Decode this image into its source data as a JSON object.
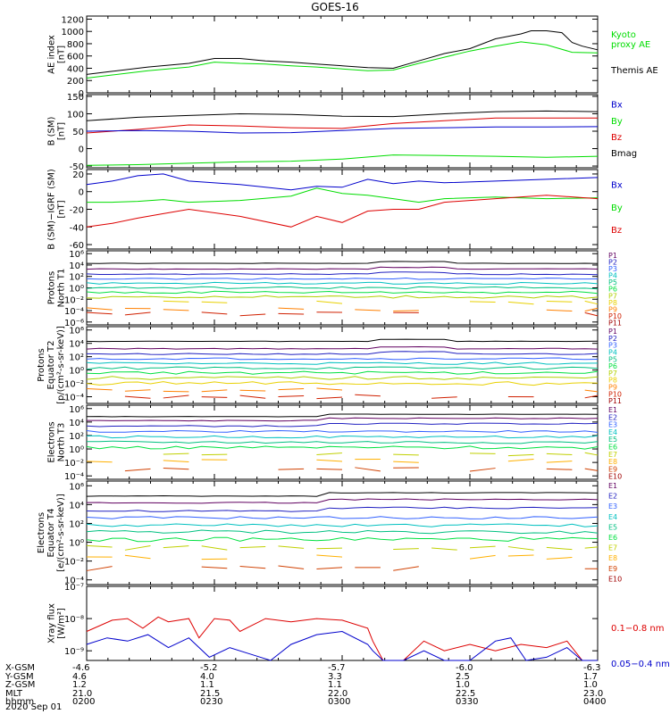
{
  "title": "GOES-16",
  "colors": {
    "black": "#000000",
    "blue": "#0000cc",
    "green": "#00dd00",
    "red": "#dd0000",
    "P": [
      "#000000",
      "#600060",
      "#2020c0",
      "#3060ff",
      "#00c0c0",
      "#00c080",
      "#00e040",
      "#b0d000",
      "#e8d000",
      "#ff8000",
      "#d02000",
      "#a00000"
    ],
    "E": [
      "#000000",
      "#600060",
      "#2020c0",
      "#3060ff",
      "#00c0c0",
      "#00c080",
      "#00e040",
      "#c0d000",
      "#ffb000",
      "#d04000",
      "#a00000"
    ]
  },
  "chart_data": [
    {
      "type": "line",
      "name": "ae",
      "ylabel_lines": [
        "AE index",
        "[nT]"
      ],
      "ytick_labels": [
        "1200",
        "1000",
        "800",
        "600",
        "400",
        "200",
        "0"
      ],
      "ytick_values": [
        1200,
        1000,
        800,
        600,
        400,
        200,
        0
      ],
      "ylim": [
        0,
        1250
      ],
      "legend": [
        {
          "text": "Kyoto",
          "color": "green"
        },
        {
          "text": "proxy AE",
          "color": "green"
        },
        {
          "text": "Themis AE",
          "color": "black"
        }
      ],
      "series": [
        {
          "label": "Themis AE",
          "color": "black",
          "x": [
            0,
            0.05,
            0.12,
            0.2,
            0.25,
            0.3,
            0.35,
            0.4,
            0.45,
            0.5,
            0.55,
            0.6,
            0.65,
            0.7,
            0.75,
            0.8,
            0.85,
            0.87,
            0.9,
            0.93,
            0.95,
            0.97,
            1
          ],
          "y": [
            300,
            350,
            420,
            480,
            560,
            560,
            520,
            500,
            470,
            440,
            410,
            400,
            520,
            640,
            720,
            880,
            960,
            1010,
            1010,
            980,
            820,
            760,
            700
          ]
        },
        {
          "label": "Kyoto proxy AE",
          "color": "green",
          "x": [
            0,
            0.05,
            0.12,
            0.2,
            0.25,
            0.3,
            0.35,
            0.4,
            0.45,
            0.5,
            0.55,
            0.6,
            0.65,
            0.7,
            0.75,
            0.8,
            0.85,
            0.9,
            0.95,
            1
          ],
          "y": [
            240,
            290,
            360,
            420,
            500,
            480,
            470,
            440,
            420,
            390,
            360,
            370,
            480,
            580,
            680,
            760,
            830,
            780,
            660,
            650
          ]
        }
      ]
    },
    {
      "type": "line",
      "name": "b-sm",
      "ylabel_lines": [
        "B (SM)",
        "[nT]"
      ],
      "ytick_labels": [
        "150",
        "100",
        "50",
        "0",
        "-50"
      ],
      "ytick_values": [
        150,
        100,
        50,
        0,
        -50
      ],
      "ylim": [
        -55,
        155
      ],
      "legend": [
        {
          "text": "Bx",
          "color": "blue"
        },
        {
          "text": "By",
          "color": "green"
        },
        {
          "text": "Bz",
          "color": "red"
        },
        {
          "text": "Bmag",
          "color": "black"
        }
      ],
      "series": [
        {
          "label": "Bmag",
          "color": "black",
          "x": [
            0,
            0.1,
            0.2,
            0.3,
            0.4,
            0.5,
            0.6,
            0.7,
            0.8,
            0.9,
            1
          ],
          "y": [
            80,
            90,
            95,
            100,
            98,
            93,
            92,
            100,
            106,
            108,
            106
          ]
        },
        {
          "label": "Bz",
          "color": "red",
          "x": [
            0,
            0.1,
            0.2,
            0.3,
            0.4,
            0.5,
            0.6,
            0.7,
            0.8,
            0.9,
            1
          ],
          "y": [
            45,
            55,
            68,
            65,
            60,
            58,
            72,
            80,
            88,
            88,
            88
          ]
        },
        {
          "label": "Bx",
          "color": "blue",
          "x": [
            0,
            0.1,
            0.2,
            0.3,
            0.4,
            0.5,
            0.6,
            0.7,
            0.8,
            0.9,
            1
          ],
          "y": [
            50,
            52,
            50,
            45,
            46,
            52,
            58,
            60,
            62,
            62,
            63
          ]
        },
        {
          "label": "By",
          "color": "green",
          "x": [
            0,
            0.1,
            0.2,
            0.3,
            0.4,
            0.5,
            0.6,
            0.7,
            0.8,
            0.9,
            1
          ],
          "y": [
            -48,
            -46,
            -42,
            -38,
            -36,
            -30,
            -18,
            -20,
            -22,
            -25,
            -22
          ]
        }
      ]
    },
    {
      "type": "line",
      "name": "b-minus-igrf",
      "ylabel_lines": [
        "B (SM)−IGRF (SM)",
        "[nT]"
      ],
      "ytick_labels": [
        "20",
        "0",
        "-20",
        "-40",
        "-60"
      ],
      "ytick_values": [
        20,
        0,
        -20,
        -40,
        -60
      ],
      "ylim": [
        -65,
        25
      ],
      "legend": [
        {
          "text": "Bx",
          "color": "blue"
        },
        {
          "text": "By",
          "color": "green"
        },
        {
          "text": "Bz",
          "color": "red"
        }
      ],
      "series": [
        {
          "label": "Bx",
          "color": "blue",
          "x": [
            0,
            0.05,
            0.1,
            0.15,
            0.2,
            0.3,
            0.4,
            0.45,
            0.5,
            0.55,
            0.6,
            0.65,
            0.7,
            0.8,
            0.9,
            1
          ],
          "y": [
            8,
            12,
            18,
            20,
            12,
            8,
            2,
            6,
            5,
            14,
            9,
            12,
            10,
            12,
            14,
            16
          ]
        },
        {
          "label": "By",
          "color": "green",
          "x": [
            0,
            0.05,
            0.1,
            0.15,
            0.2,
            0.3,
            0.4,
            0.45,
            0.5,
            0.55,
            0.6,
            0.65,
            0.7,
            0.8,
            0.9,
            1
          ],
          "y": [
            -12,
            -12,
            -11,
            -9,
            -12,
            -10,
            -5,
            4,
            -2,
            -4,
            -8,
            -12,
            -8,
            -6,
            -8,
            -7
          ]
        },
        {
          "label": "Bz",
          "color": "red",
          "x": [
            0,
            0.05,
            0.1,
            0.15,
            0.2,
            0.3,
            0.4,
            0.45,
            0.5,
            0.55,
            0.6,
            0.65,
            0.7,
            0.8,
            0.9,
            1
          ],
          "y": [
            -40,
            -36,
            -30,
            -25,
            -20,
            -28,
            -40,
            -28,
            -35,
            -22,
            -20,
            -20,
            -12,
            -8,
            -4,
            -8
          ]
        }
      ]
    },
    {
      "type": "line",
      "name": "protons-north",
      "scale": "log",
      "ylabel_lines": [
        "Protons",
        "North T1"
      ],
      "ytick_labels": [
        "10⁶",
        "10⁴",
        "10²",
        "10⁰",
        "10⁻²",
        "10⁻⁴",
        "10⁻⁶"
      ],
      "ytick_values": [
        6,
        4,
        2,
        0,
        -2,
        -4,
        -6
      ],
      "ylim": [
        -6.5,
        6.5
      ],
      "legend": [
        "P1",
        "P2",
        "P3",
        "P4",
        "P5",
        "P6",
        "P7",
        "P8",
        "P9",
        "P10",
        "P11"
      ],
      "series_levels": [
        4.3,
        3.3,
        2.4,
        1.6,
        0.8,
        0.0,
        -0.8,
        -1.6,
        -2.6,
        -3.8,
        -4.6
      ],
      "dashed_from": 8
    },
    {
      "type": "line",
      "name": "protons-equator",
      "scale": "log",
      "ylabel_lines": [
        "Protons",
        "Equator T2",
        "[p/(cm²-s-sr-keV)]"
      ],
      "ytick_labels": [
        "10⁶",
        "10⁴",
        "10²",
        "10⁰",
        "10⁻²",
        "10⁻⁴"
      ],
      "ytick_values": [
        6,
        4,
        2,
        0,
        -2,
        -4
      ],
      "ylim": [
        -5,
        6.5
      ],
      "legend": [
        "P1",
        "P2",
        "P3",
        "P4",
        "P5",
        "P6",
        "P7",
        "P8",
        "P9",
        "P10",
        "P11"
      ],
      "series_levels": [
        4.3,
        3.2,
        2.4,
        1.7,
        1.0,
        0.3,
        -0.4,
        -1.2,
        -2.0,
        -3.0,
        -4.0
      ],
      "dashed_from": 9
    },
    {
      "type": "line",
      "name": "electrons-north",
      "scale": "log",
      "ylabel_lines": [
        "Electrons",
        "North T3"
      ],
      "ytick_labels": [
        "10⁶",
        "10⁴",
        "10²",
        "10⁰",
        "10⁻²",
        "10⁻⁴"
      ],
      "ytick_values": [
        6,
        4,
        2,
        0,
        -2,
        -4
      ],
      "ylim": [
        -4.5,
        6.5
      ],
      "legend": [
        "E1",
        "E2",
        "E3",
        "E4",
        "E5",
        "E6",
        "E7",
        "E8",
        "E9",
        "E10"
      ],
      "series_levels": [
        4.8,
        4.2,
        3.4,
        2.6,
        1.8,
        1.0,
        0.2,
        -0.8,
        -1.8,
        -3.0
      ],
      "dashed_from": 7
    },
    {
      "type": "line",
      "name": "electrons-equator",
      "scale": "log",
      "ylabel_lines": [
        "Electrons",
        "Equator T4",
        "[e/(cm²-s-sr-keV)]"
      ],
      "ytick_labels": [
        "10⁶",
        "10⁴",
        "10²",
        "10⁰",
        "10⁻²",
        "10⁻⁴"
      ],
      "ytick_values": [
        6,
        4,
        2,
        0,
        -2,
        -4
      ],
      "ylim": [
        -4.5,
        6.5
      ],
      "legend": [
        "E1",
        "E2",
        "E3",
        "E4",
        "E5",
        "E6",
        "E7",
        "E8",
        "E9",
        "E10"
      ],
      "series_levels": [
        4.9,
        4.2,
        3.3,
        2.6,
        1.8,
        1.1,
        0.3,
        -0.6,
        -1.6,
        -2.8
      ],
      "dashed_from": 7
    },
    {
      "type": "line",
      "name": "xray",
      "scale": "log",
      "ylabel_lines": [
        "Xray flux",
        "[W/m²]"
      ],
      "ytick_labels": [
        "10⁻⁷",
        "10⁻⁸",
        "10⁻⁹"
      ],
      "ytick_values": [
        -7,
        -8,
        -9
      ],
      "ylim": [
        -9.3,
        -7
      ],
      "legend": [
        {
          "text": "0.1−0.8 nm",
          "color": "red"
        },
        {
          "text": "0.05−0.4 nm",
          "color": "blue"
        }
      ],
      "series": [
        {
          "label": "0.1-0.8 nm",
          "color": "red",
          "x": [
            0,
            0.05,
            0.08,
            0.11,
            0.14,
            0.16,
            0.2,
            0.22,
            0.25,
            0.28,
            0.3,
            0.35,
            0.4,
            0.45,
            0.5,
            0.55,
            0.56,
            0.58,
            0.62,
            0.66,
            0.7,
            0.75,
            0.8,
            0.85,
            0.9,
            0.94,
            0.97,
            1
          ],
          "y": [
            -8.4,
            -8.05,
            -8.0,
            -8.3,
            -7.95,
            -8.1,
            -8.0,
            -8.6,
            -8.0,
            -8.05,
            -8.4,
            -8.0,
            -8.1,
            -8.0,
            -8.05,
            -8.3,
            -8.7,
            -9.3,
            -9.3,
            -8.7,
            -9.0,
            -8.8,
            -9.0,
            -8.8,
            -8.9,
            -8.7,
            -9.3,
            -9.3
          ]
        },
        {
          "label": "0.05-0.4 nm",
          "color": "blue",
          "x": [
            0,
            0.04,
            0.08,
            0.12,
            0.16,
            0.2,
            0.24,
            0.28,
            0.32,
            0.36,
            0.4,
            0.45,
            0.5,
            0.55,
            0.56,
            0.58,
            0.62,
            0.66,
            0.7,
            0.75,
            0.8,
            0.83,
            0.86,
            0.9,
            0.94,
            0.97,
            1
          ],
          "y": [
            -8.8,
            -8.6,
            -8.7,
            -8.5,
            -8.9,
            -8.6,
            -9.2,
            -8.9,
            -9.1,
            -9.3,
            -8.8,
            -8.5,
            -8.4,
            -8.8,
            -9.0,
            -9.3,
            -9.3,
            -9.0,
            -9.3,
            -9.3,
            -8.7,
            -8.6,
            -9.3,
            -9.2,
            -8.9,
            -9.3,
            -9.3
          ]
        }
      ]
    }
  ],
  "axis_footer": {
    "rows": [
      {
        "label": "X-GSM",
        "values": [
          "-4.6",
          "-5.2",
          "-5.7",
          "-6.0",
          "-6.3"
        ]
      },
      {
        "label": "Y-GSM",
        "values": [
          "4.6",
          "4.0",
          "3.3",
          "2.5",
          "1.7"
        ]
      },
      {
        "label": "Z-GSM",
        "values": [
          "1.2",
          "1.1",
          "1.1",
          "1.0",
          "1.0"
        ]
      },
      {
        "label": "MLT",
        "values": [
          "21.0",
          "21.5",
          "22.0",
          "22.5",
          "23.0"
        ]
      },
      {
        "label": "hhmm",
        "values": [
          "0200",
          "0230",
          "0300",
          "0330",
          "0400"
        ]
      }
    ],
    "date": "2020 Sep 01"
  }
}
